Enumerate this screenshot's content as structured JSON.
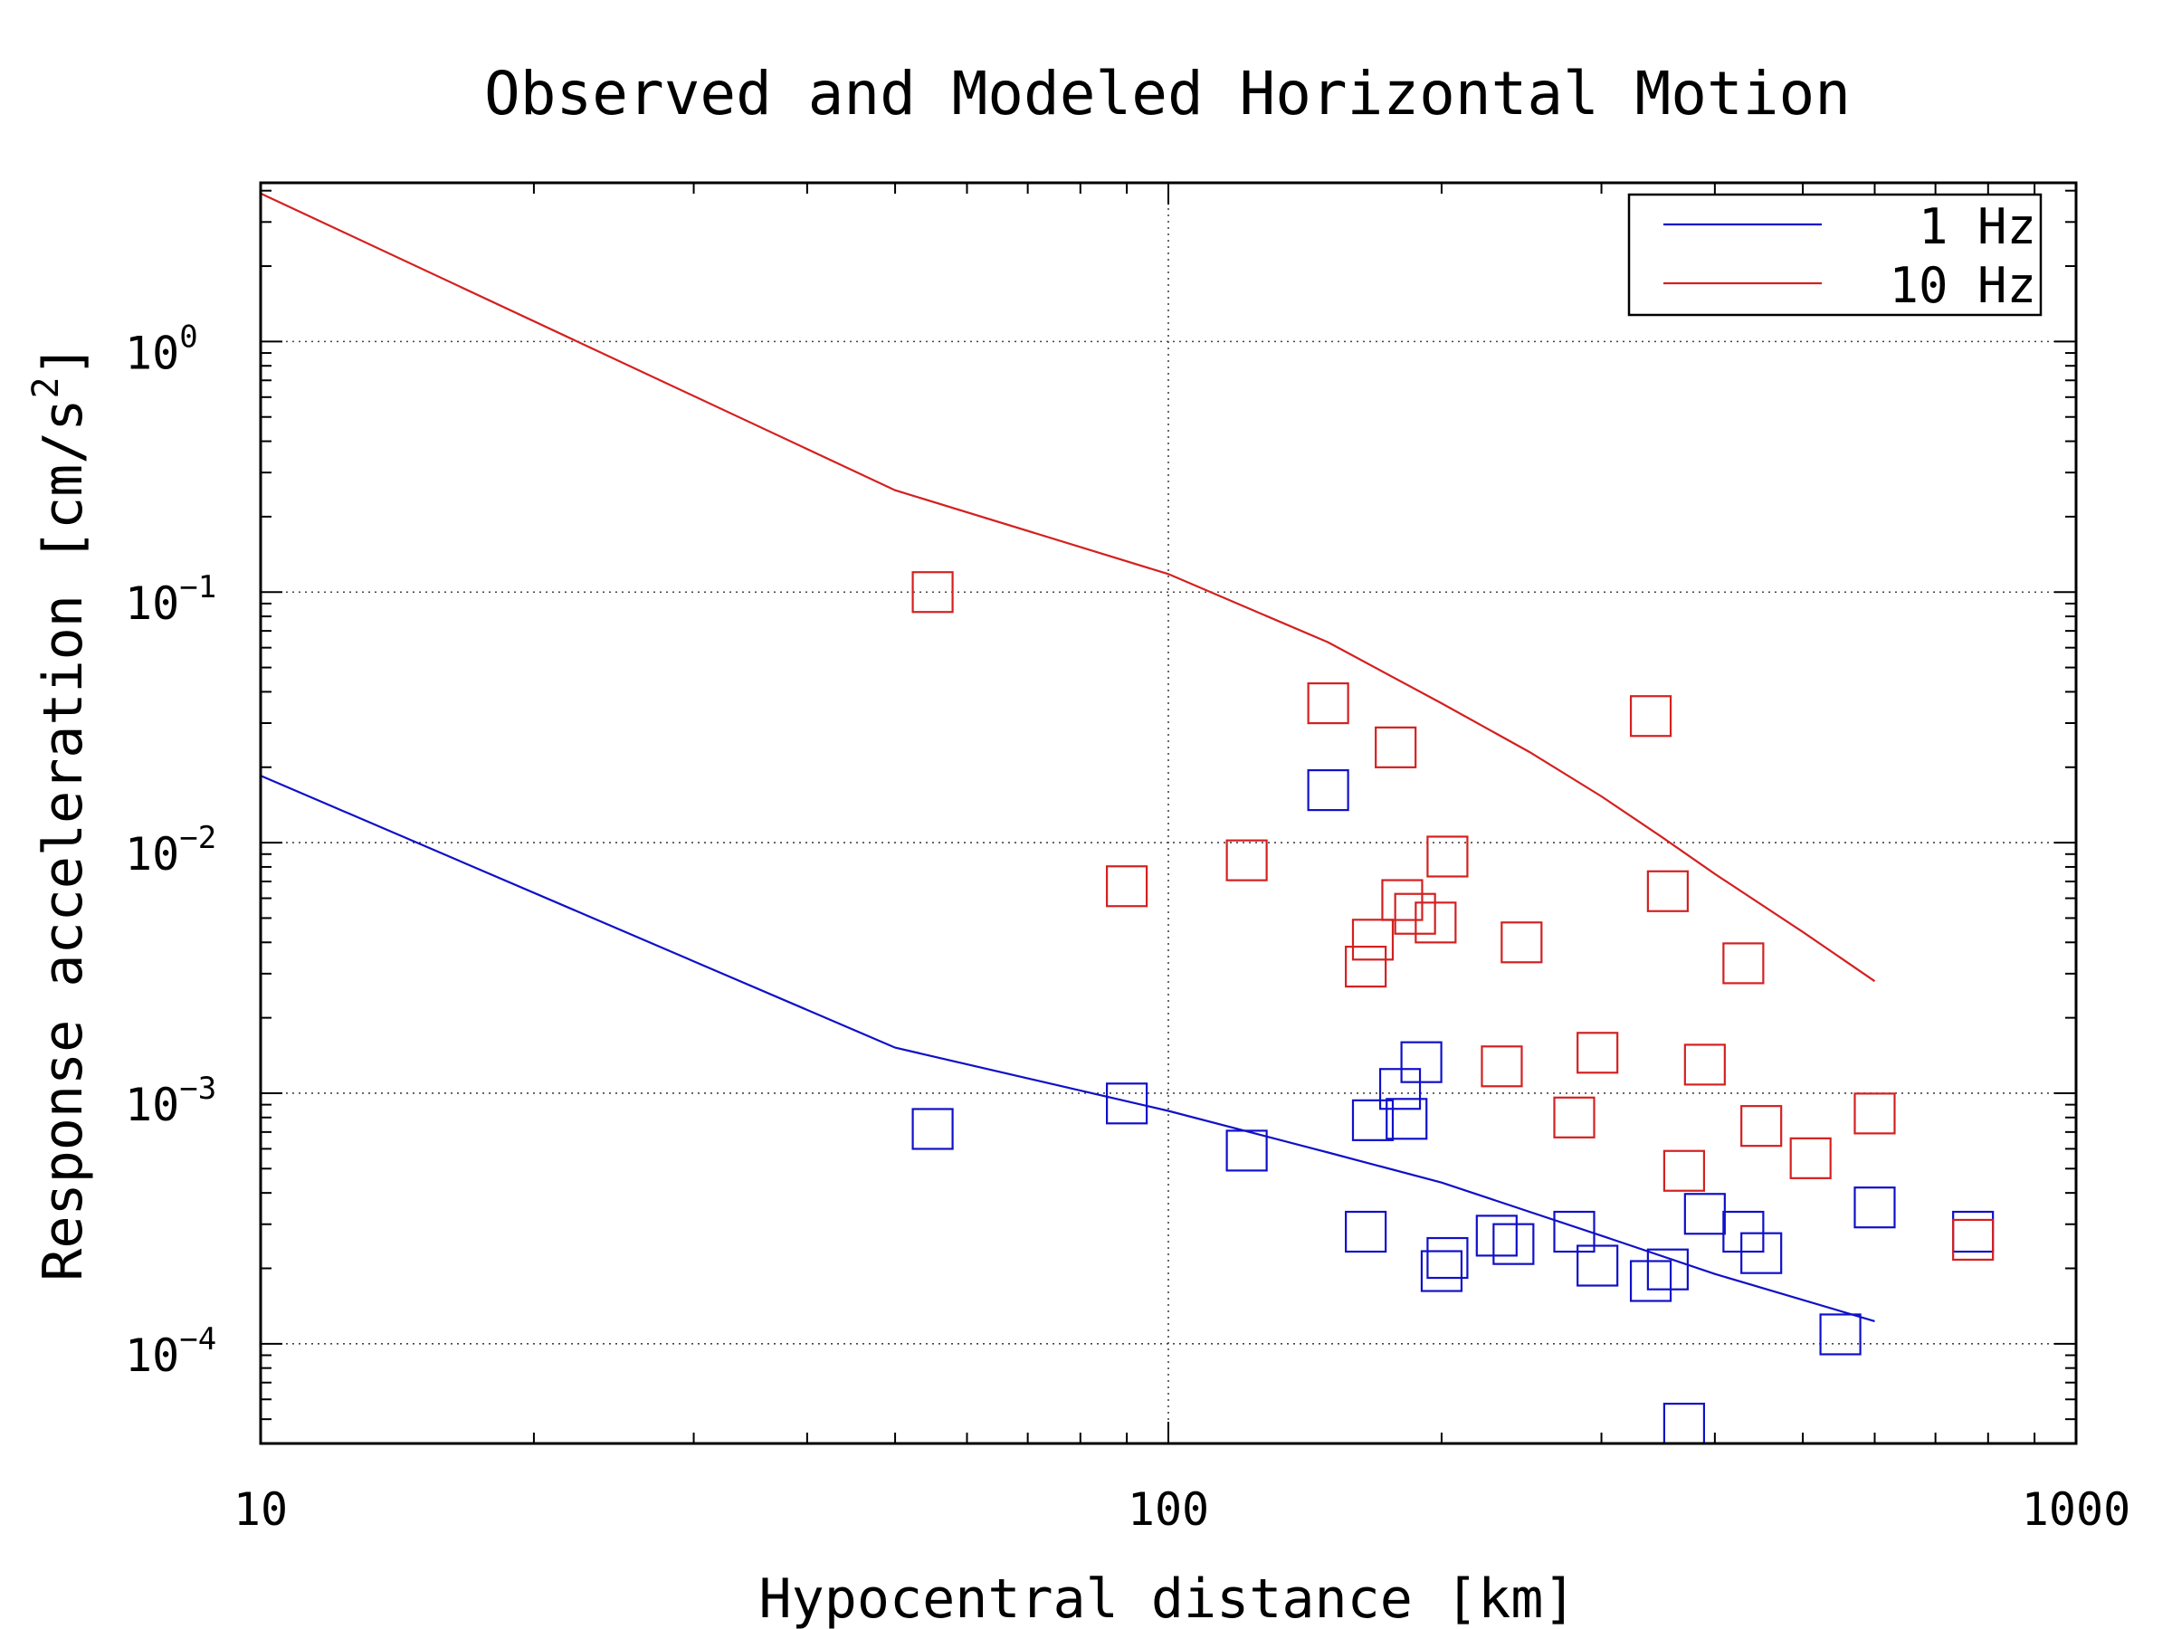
{
  "chart_data": {
    "type": "scatter",
    "title": "Observed and Modeled Horizontal Motion",
    "xlabel": "Hypocentral distance [km]",
    "ylabel_main": "Response acceleration [cm/s",
    "ylabel_sup": "2",
    "ylabel_tail": "]",
    "x_scale": "log",
    "y_scale": "log",
    "xlim": [
      10,
      1000
    ],
    "ylim": [
      4e-05,
      4.3
    ],
    "grid": true,
    "legend_position": "top-right",
    "x_ticks": [
      {
        "value": 10,
        "label": "10"
      },
      {
        "value": 100,
        "label": "100"
      },
      {
        "value": 1000,
        "label": "1000"
      }
    ],
    "y_ticks": [
      {
        "value": 1,
        "base": "10",
        "exp": "0"
      },
      {
        "value": 0.1,
        "base": "10",
        "exp": "−1"
      },
      {
        "value": 0.01,
        "base": "10",
        "exp": "−2"
      },
      {
        "value": 0.001,
        "base": "10",
        "exp": "−3"
      },
      {
        "value": 0.0001,
        "base": "10",
        "exp": "−4"
      }
    ],
    "colors": {
      "one_hz": "#1010c8",
      "ten_hz": "#d42020"
    },
    "model_lines": [
      {
        "name": "1 Hz",
        "color": "#1010c8",
        "x": [
          10,
          50,
          100,
          150,
          200,
          300,
          400,
          600
        ],
        "y": [
          0.0185,
          0.00152,
          0.00085,
          0.00058,
          0.00044,
          0.00027,
          0.00019,
          0.000123
        ]
      },
      {
        "name": "10 Hz",
        "color": "#d42020",
        "x": [
          10,
          50,
          100,
          150,
          200,
          250,
          300,
          350,
          400,
          500,
          600
        ],
        "y": [
          3.9,
          0.255,
          0.118,
          0.063,
          0.036,
          0.023,
          0.0153,
          0.0105,
          0.0075,
          0.0044,
          0.0028
        ]
      }
    ],
    "observed": [
      {
        "name": "1 Hz observed",
        "color": "#1010c8",
        "x": [
          55,
          90,
          122,
          150,
          165,
          168,
          180,
          183,
          190,
          200,
          203,
          230,
          240,
          280,
          297,
          340,
          355,
          370,
          390,
          430,
          450,
          550,
          600,
          770
        ],
        "y": [
          0.00072,
          0.00091,
          0.00059,
          0.0162,
          0.00028,
          0.00078,
          0.00104,
          0.00079,
          0.00133,
          0.000195,
          0.00022,
          0.00027,
          0.00025,
          0.00028,
          0.000205,
          0.000178,
          0.000198,
          4.8e-05,
          0.00033,
          0.00028,
          0.00023,
          0.000109,
          0.00035,
          0.00028
        ]
      },
      {
        "name": "10 Hz observed",
        "color": "#d42020",
        "x": [
          55,
          90,
          122,
          150,
          165,
          168,
          178,
          181,
          187,
          197,
          203,
          233,
          245,
          280,
          297,
          340,
          355,
          370,
          390,
          430,
          450,
          510,
          600,
          770
        ],
        "y": [
          0.1,
          0.0067,
          0.0085,
          0.036,
          0.0032,
          0.0041,
          0.024,
          0.0059,
          0.0052,
          0.0048,
          0.0088,
          0.00128,
          0.004,
          0.0008,
          0.00145,
          0.032,
          0.0064,
          0.00049,
          0.0013,
          0.0033,
          0.00074,
          0.00055,
          0.00083,
          0.00026
        ]
      }
    ],
    "legend": [
      {
        "label": "1 Hz",
        "color": "#1010c8"
      },
      {
        "label": "10 Hz",
        "color": "#d42020"
      }
    ]
  }
}
